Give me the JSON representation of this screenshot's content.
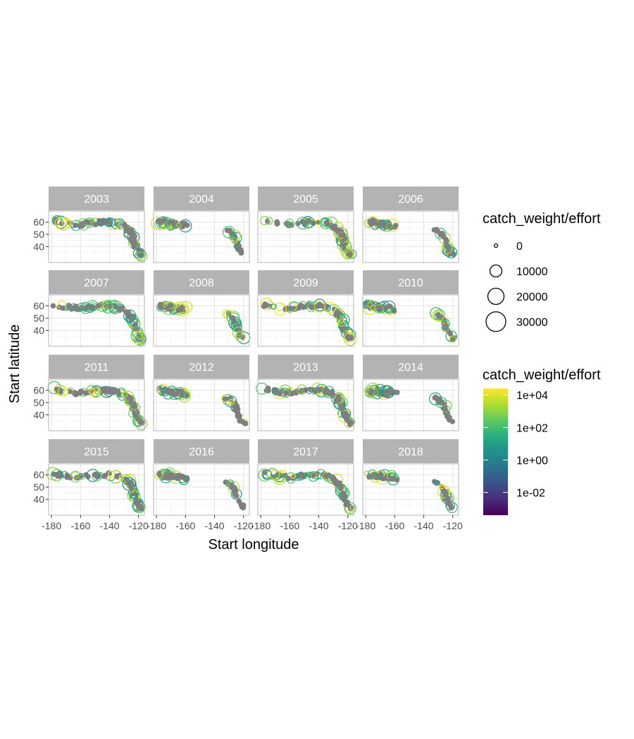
{
  "chart_data": {
    "type": "scatter",
    "facet_by": "year",
    "facets": [
      "2003",
      "2004",
      "2005",
      "2006",
      "2007",
      "2008",
      "2009",
      "2010",
      "2011",
      "2012",
      "2013",
      "2014",
      "2015",
      "2016",
      "2017",
      "2018"
    ],
    "xlabel": "Start longitude",
    "ylabel": "Start latitude",
    "xlim": [
      -182,
      -116
    ],
    "ylim": [
      27,
      69
    ],
    "x_ticks": [
      -180,
      -160,
      -140,
      -120
    ],
    "x_tick_labels": [
      "-180",
      "-160",
      "-140",
      "-120"
    ],
    "y_ticks": [
      40,
      50,
      60
    ],
    "y_tick_labels": [
      "40",
      "50",
      "60"
    ],
    "grid": true,
    "size_legend": {
      "title": "catch_weight/effort",
      "breaks": [
        0,
        10000,
        20000,
        30000
      ],
      "labels": [
        "0",
        "10000",
        "20000",
        "30000"
      ]
    },
    "color_legend": {
      "title": "catch_weight/effort",
      "scale": "log10",
      "palette": "viridis",
      "labels": [
        "1e+04",
        "1e+02",
        "1e+00",
        "1e-02"
      ],
      "label_log10": [
        4,
        2,
        0,
        -2
      ],
      "range_log10": [
        -3.4,
        4.4
      ]
    },
    "colors": {
      "zero_catch": "#7f7f7f",
      "strip_fill": "#b3b3b3",
      "panel_border": "#b3b3b3"
    }
  }
}
